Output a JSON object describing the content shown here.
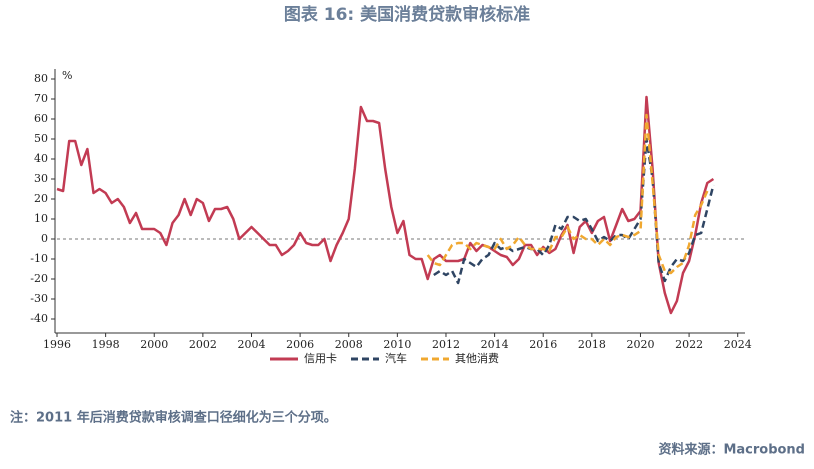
{
  "chart_data": {
    "type": "line",
    "title": "图表 16: 美国消费贷款审核标准",
    "y_unit": "%",
    "note": "注：2011 年后消费贷款审核调查口径细化为三个分项。",
    "source": "资料来源：Macrobond",
    "xlim": [
      1996,
      2024.3
    ],
    "xticks": [
      1996,
      1998,
      2000,
      2002,
      2004,
      2006,
      2008,
      2010,
      2012,
      2014,
      2016,
      2018,
      2020,
      2022,
      2024
    ],
    "ylim": [
      -47,
      85
    ],
    "yticks": [
      -40,
      -30,
      -20,
      -10,
      0,
      10,
      20,
      30,
      40,
      50,
      60,
      70,
      80
    ],
    "zero_line": true,
    "series": [
      {
        "name": "信用卡",
        "color": "#c23b53",
        "dash": false,
        "x": [
          1996,
          1996.25,
          1996.5,
          1996.75,
          1997,
          1997.25,
          1997.5,
          1997.75,
          1998,
          1998.25,
          1998.5,
          1998.75,
          1999,
          1999.25,
          1999.5,
          1999.75,
          2000,
          2000.25,
          2000.5,
          2000.75,
          2001,
          2001.25,
          2001.5,
          2001.75,
          2002,
          2002.25,
          2002.5,
          2002.75,
          2003,
          2003.25,
          2003.5,
          2003.75,
          2004,
          2004.25,
          2004.5,
          2004.75,
          2005,
          2005.25,
          2005.5,
          2005.75,
          2006,
          2006.25,
          2006.5,
          2006.75,
          2007,
          2007.25,
          2007.5,
          2007.75,
          2008,
          2008.25,
          2008.5,
          2008.75,
          2009,
          2009.25,
          2009.5,
          2009.75,
          2010,
          2010.25,
          2010.5,
          2010.75,
          2011,
          2011.25,
          2011.5,
          2011.75,
          2012,
          2012.25,
          2012.5,
          2012.75,
          2013,
          2013.25,
          2013.5,
          2013.75,
          2014,
          2014.25,
          2014.5,
          2014.75,
          2015,
          2015.25,
          2015.5,
          2015.75,
          2016,
          2016.25,
          2016.5,
          2016.75,
          2017,
          2017.25,
          2017.5,
          2017.75,
          2018,
          2018.25,
          2018.5,
          2018.75,
          2019,
          2019.25,
          2019.5,
          2019.75,
          2020,
          2020.25,
          2020.5,
          2020.75,
          2021,
          2021.25,
          2021.5,
          2021.75,
          2022,
          2022.25,
          2022.5,
          2022.75,
          2023
        ],
        "values": [
          25,
          24,
          49,
          49,
          37,
          45,
          23,
          25,
          23,
          18,
          20,
          16,
          8,
          13,
          5,
          5,
          5,
          3,
          -3,
          8,
          12,
          20,
          12,
          20,
          18,
          9,
          15,
          15,
          16,
          10,
          0,
          3,
          6,
          3,
          0,
          -3,
          -3,
          -8,
          -6,
          -3,
          3,
          -2,
          -3,
          -3,
          0,
          -11,
          -3,
          3,
          10,
          35,
          66,
          59,
          59,
          58,
          35,
          16,
          3,
          9,
          -8,
          -10,
          -10,
          -20,
          -10,
          -8,
          -11,
          -11,
          -11,
          -10,
          -2,
          -6,
          -3,
          -4,
          -6,
          -8,
          -9,
          -13,
          -10,
          -3,
          -3,
          -8,
          -4,
          -7,
          -5,
          2,
          7,
          -7,
          6,
          9,
          3,
          9,
          11,
          -1,
          7,
          15,
          9,
          10,
          14,
          71,
          35,
          -12,
          -27,
          -37,
          -31,
          -17,
          -11,
          2,
          18,
          28,
          30
        ]
      },
      {
        "name": "汽车",
        "color": "#2f4563",
        "dash": true,
        "x": [
          2011.5,
          2011.75,
          2012,
          2012.25,
          2012.5,
          2012.75,
          2013,
          2013.25,
          2013.5,
          2013.75,
          2014,
          2014.25,
          2014.5,
          2014.75,
          2015,
          2015.25,
          2015.5,
          2015.75,
          2016,
          2016.25,
          2016.5,
          2016.75,
          2017,
          2017.25,
          2017.5,
          2017.75,
          2018,
          2018.25,
          2018.5,
          2018.75,
          2019,
          2019.25,
          2019.5,
          2019.75,
          2020,
          2020.25,
          2020.5,
          2020.75,
          2021,
          2021.25,
          2021.5,
          2021.75,
          2022,
          2022.25,
          2022.5,
          2022.75,
          2023
        ],
        "values": [
          -18,
          -16,
          -18,
          -16,
          -22,
          -10,
          -12,
          -14,
          -10,
          -8,
          -2,
          -5,
          -4,
          -6,
          -5,
          -4,
          -5,
          -5,
          -8,
          -3,
          7,
          5,
          11,
          11,
          9,
          10,
          5,
          -1,
          1,
          -1,
          2,
          2,
          0,
          5,
          10,
          50,
          30,
          -12,
          -21,
          -14,
          -10,
          -11,
          -7,
          2,
          3,
          15,
          27
        ]
      },
      {
        "name": "其他消费",
        "color": "#f0a830",
        "dash": true,
        "x": [
          2011.25,
          2011.5,
          2011.75,
          2012,
          2012.25,
          2012.5,
          2012.75,
          2013,
          2013.25,
          2013.5,
          2013.75,
          2014,
          2014.25,
          2014.5,
          2014.75,
          2015,
          2015.25,
          2015.5,
          2015.75,
          2016,
          2016.25,
          2016.5,
          2016.75,
          2017,
          2017.25,
          2017.5,
          2017.75,
          2018,
          2018.25,
          2018.5,
          2018.75,
          2019,
          2019.25,
          2019.5,
          2019.75,
          2020,
          2020.25,
          2020.5,
          2020.75,
          2021,
          2021.25,
          2021.5,
          2021.75,
          2022,
          2022.25,
          2022.5,
          2022.75
        ],
        "values": [
          -8,
          -12,
          -13,
          -8,
          -3,
          -2,
          -2,
          -5,
          -2,
          -3,
          -4,
          -5,
          0,
          -5,
          -3,
          1,
          -3,
          -5,
          -5,
          -5,
          -6,
          1,
          1,
          6,
          0,
          2,
          0,
          0,
          -3,
          0,
          -3,
          1,
          2,
          1,
          2,
          4,
          62,
          28,
          -8,
          -16,
          -17,
          -14,
          -12,
          -3,
          12,
          17,
          24
        ]
      }
    ]
  }
}
